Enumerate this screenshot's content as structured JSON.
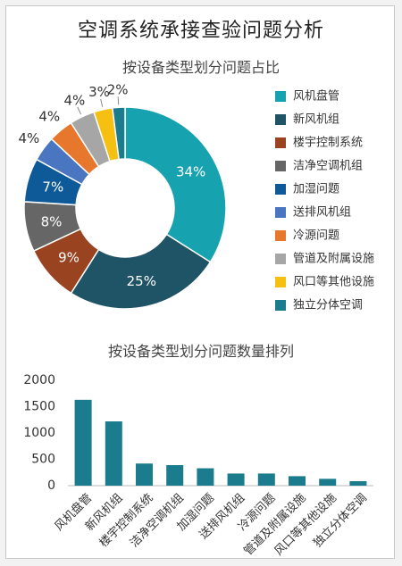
{
  "title": "空调系统承接查验问题分析",
  "chart_data": [
    {
      "type": "pie",
      "title": "按设备类型划分问题占比",
      "donut": true,
      "legend": "right",
      "categories": [
        "风机盘管",
        "新风机组",
        "楼宇控制系统",
        "洁净空调机组",
        "加湿问题",
        "送排风机组",
        "冷源问题",
        "管道及附属设施",
        "风口等其他设施",
        "独立分体空调"
      ],
      "values": [
        34,
        25,
        9,
        8,
        7,
        4,
        4,
        4,
        3,
        2
      ],
      "labels": [
        "34%",
        "25%",
        "9%",
        "8%",
        "7%",
        "4%",
        "4%",
        "4%",
        "3%",
        "2%"
      ],
      "colors": [
        "#17a2b0",
        "#1f5366",
        "#9a4321",
        "#666666",
        "#0e5a99",
        "#4a75c0",
        "#e8772e",
        "#a6a6a6",
        "#f5c012",
        "#1a7c8c"
      ]
    },
    {
      "type": "bar",
      "title": "按设备类型划分问题数量排列",
      "categories": [
        "风机盘管",
        "新风机组",
        "楼宇控制系统",
        "洁净空调机组",
        "加湿问题",
        "送排风机组",
        "冷源问题",
        "管道及附属设施",
        "风口等其他设施",
        "独立分体空调"
      ],
      "values": [
        1630,
        1220,
        420,
        390,
        330,
        230,
        230,
        180,
        130,
        85
      ],
      "ylim": [
        0,
        2000
      ],
      "yticks": [
        "0",
        "500",
        "1000",
        "1500",
        "2000"
      ],
      "color": "#1a7c8c",
      "grid": false
    }
  ]
}
